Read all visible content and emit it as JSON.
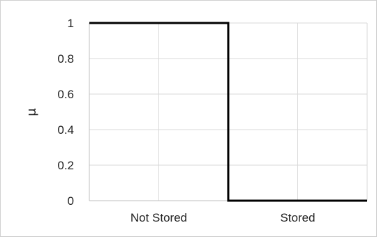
{
  "chart_data": {
    "type": "line",
    "title": "",
    "xlabel": "",
    "ylabel": "μ",
    "categories": [
      "Not Stored",
      "Stored"
    ],
    "x_domain": [
      0,
      2
    ],
    "ylim": [
      0,
      1
    ],
    "y_ticks": [
      "0",
      "0.2",
      "0.4",
      "0.6",
      "0.8",
      "1"
    ],
    "y_tick_values": [
      0,
      0.2,
      0.4,
      0.6,
      0.8,
      1
    ],
    "grid": true,
    "legend": "none",
    "series": [
      {
        "points": [
          [
            0,
            1
          ],
          [
            1,
            1
          ],
          [
            1,
            0
          ],
          [
            2,
            0
          ]
        ]
      }
    ],
    "colors": {
      "line": "#000000",
      "grid": "#d9d9d9",
      "axis": "#bfbfbf",
      "border": "#d0d0d0"
    }
  }
}
